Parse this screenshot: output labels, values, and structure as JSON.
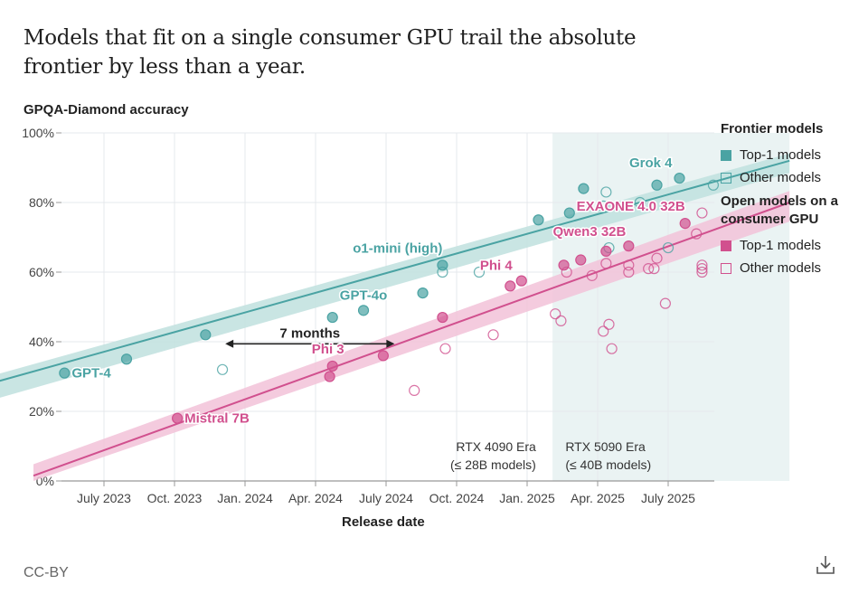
{
  "title": "Models that fit on a single consumer GPU trail the absolute frontier by less than a year.",
  "license": "CC-BY",
  "download_icon": "download-icon",
  "colors": {
    "frontier": "#4aa3a3",
    "frontier_band": "#bfe0de",
    "open": "#d1508e",
    "open_band": "#f2c2d8",
    "era_shade": "#eaf3f3",
    "grid": "#e6e9ec"
  },
  "legend": {
    "frontier_title": "Frontier models",
    "frontier_top": "Top-1 models",
    "frontier_other": "Other models",
    "open_title": "Open models on a consumer GPU",
    "open_top": "Top-1 models",
    "open_other": "Other models"
  },
  "chart_data": {
    "type": "scatter",
    "title": "Models that fit on a single consumer GPU trail the absolute frontier by less than a year.",
    "xlabel": "Release date",
    "ylabel": "GPQA-Diamond accuracy",
    "x_unit": "decimal year",
    "xlim": [
      2023.03,
      2025.93
    ],
    "ylim": [
      0,
      100
    ],
    "x_ticks": [
      {
        "value": 2023.5,
        "label": "July 2023"
      },
      {
        "value": 2023.75,
        "label": "Oct. 2023"
      },
      {
        "value": 2024.0,
        "label": "Jan. 2024"
      },
      {
        "value": 2024.25,
        "label": "Apr. 2024"
      },
      {
        "value": 2024.5,
        "label": "July 2024"
      },
      {
        "value": 2024.75,
        "label": "Oct. 2024"
      },
      {
        "value": 2025.0,
        "label": "Jan. 2025"
      },
      {
        "value": 2025.25,
        "label": "Apr. 2025"
      },
      {
        "value": 2025.5,
        "label": "July 2025"
      }
    ],
    "y_ticks": [
      {
        "value": 0,
        "label": "0%"
      },
      {
        "value": 20,
        "label": "20%"
      },
      {
        "value": 40,
        "label": "40%"
      },
      {
        "value": 60,
        "label": "60%"
      },
      {
        "value": 80,
        "label": "80%"
      },
      {
        "value": 100,
        "label": "100%"
      }
    ],
    "grid": true,
    "legend_position": "right",
    "series": [
      {
        "name": "Frontier models – Top-1 models",
        "group": "frontier",
        "filled": true,
        "points": [
          {
            "x": 2023.36,
            "y": 31,
            "label": "GPT-4"
          },
          {
            "x": 2023.58,
            "y": 35
          },
          {
            "x": 2023.86,
            "y": 42
          },
          {
            "x": 2024.31,
            "y": 47
          },
          {
            "x": 2024.42,
            "y": 49,
            "label": "GPT-4o"
          },
          {
            "x": 2024.63,
            "y": 54
          },
          {
            "x": 2024.7,
            "y": 62,
            "label": "o1-mini (high)"
          },
          {
            "x": 2025.04,
            "y": 75
          },
          {
            "x": 2025.15,
            "y": 77
          },
          {
            "x": 2025.2,
            "y": 84
          },
          {
            "x": 2025.46,
            "y": 85
          },
          {
            "x": 2025.54,
            "y": 87,
            "label": "Grok 4"
          }
        ]
      },
      {
        "name": "Frontier models – Other models",
        "group": "frontier",
        "filled": false,
        "points": [
          {
            "x": 2023.92,
            "y": 32
          },
          {
            "x": 2024.7,
            "y": 60
          },
          {
            "x": 2024.83,
            "y": 60
          },
          {
            "x": 2025.27,
            "y": 79
          },
          {
            "x": 2025.28,
            "y": 83
          },
          {
            "x": 2025.4,
            "y": 80
          },
          {
            "x": 2025.66,
            "y": 85
          },
          {
            "x": 2025.54,
            "y": 79
          },
          {
            "x": 2025.29,
            "y": 67
          },
          {
            "x": 2025.5,
            "y": 67
          }
        ]
      },
      {
        "name": "Open models on a consumer GPU – Top-1 models",
        "group": "open",
        "filled": true,
        "points": [
          {
            "x": 2023.76,
            "y": 18,
            "label": "Mistral 7B"
          },
          {
            "x": 2024.3,
            "y": 30
          },
          {
            "x": 2024.31,
            "y": 33,
            "label": "Phi 3"
          },
          {
            "x": 2024.49,
            "y": 36
          },
          {
            "x": 2024.7,
            "y": 47
          },
          {
            "x": 2024.94,
            "y": 56
          },
          {
            "x": 2024.98,
            "y": 57.5,
            "label": "Phi 4"
          },
          {
            "x": 2025.13,
            "y": 62
          },
          {
            "x": 2025.19,
            "y": 63.5
          },
          {
            "x": 2025.28,
            "y": 66,
            "label": "Qwen3 32B"
          },
          {
            "x": 2025.36,
            "y": 67.5
          },
          {
            "x": 2025.56,
            "y": 74,
            "label": "EXAONE 4.0 32B"
          }
        ]
      },
      {
        "name": "Open models on a consumer GPU – Other models",
        "group": "open",
        "filled": false,
        "points": [
          {
            "x": 2024.6,
            "y": 26
          },
          {
            "x": 2024.71,
            "y": 38
          },
          {
            "x": 2024.88,
            "y": 42
          },
          {
            "x": 2025.1,
            "y": 48
          },
          {
            "x": 2025.12,
            "y": 46
          },
          {
            "x": 2025.14,
            "y": 60
          },
          {
            "x": 2025.23,
            "y": 59
          },
          {
            "x": 2025.27,
            "y": 43
          },
          {
            "x": 2025.29,
            "y": 45
          },
          {
            "x": 2025.3,
            "y": 38
          },
          {
            "x": 2025.28,
            "y": 62.5
          },
          {
            "x": 2025.36,
            "y": 60
          },
          {
            "x": 2025.36,
            "y": 62
          },
          {
            "x": 2025.43,
            "y": 61
          },
          {
            "x": 2025.45,
            "y": 61
          },
          {
            "x": 2025.46,
            "y": 64
          },
          {
            "x": 2025.49,
            "y": 51
          },
          {
            "x": 2025.6,
            "y": 71
          },
          {
            "x": 2025.62,
            "y": 60
          },
          {
            "x": 2025.62,
            "y": 61
          },
          {
            "x": 2025.62,
            "y": 62
          },
          {
            "x": 2025.62,
            "y": 77
          }
        ]
      }
    ],
    "trend_lines": [
      {
        "name": "Frontier trend",
        "group": "frontier",
        "x": [
          2023.03,
          2025.93
        ],
        "y": [
          26.5,
          92
        ],
        "band": 3.5
      },
      {
        "name": "Open consumer-GPU trend",
        "group": "open",
        "x": [
          2023.25,
          2025.93
        ],
        "y": [
          1.5,
          80
        ],
        "band": 5.5
      }
    ],
    "regions": [
      {
        "name": "RTX 5090 Era",
        "x_start": 2025.09,
        "x_end": 2025.93,
        "shaded": true
      }
    ],
    "annotations": [
      {
        "text": "7 months",
        "type": "double-arrow",
        "x_start": 2023.93,
        "x_end": 2024.53,
        "y": 42
      },
      {
        "text_line1": "RTX 4090 Era",
        "text_line2": "(≤ 28B models)",
        "x": 2025.07,
        "y": 7,
        "anchor": "end"
      },
      {
        "text_line1": "RTX 5090 Era",
        "text_line2": "(≤ 40B models)",
        "x": 2025.11,
        "y": 7,
        "anchor": "start"
      }
    ]
  }
}
